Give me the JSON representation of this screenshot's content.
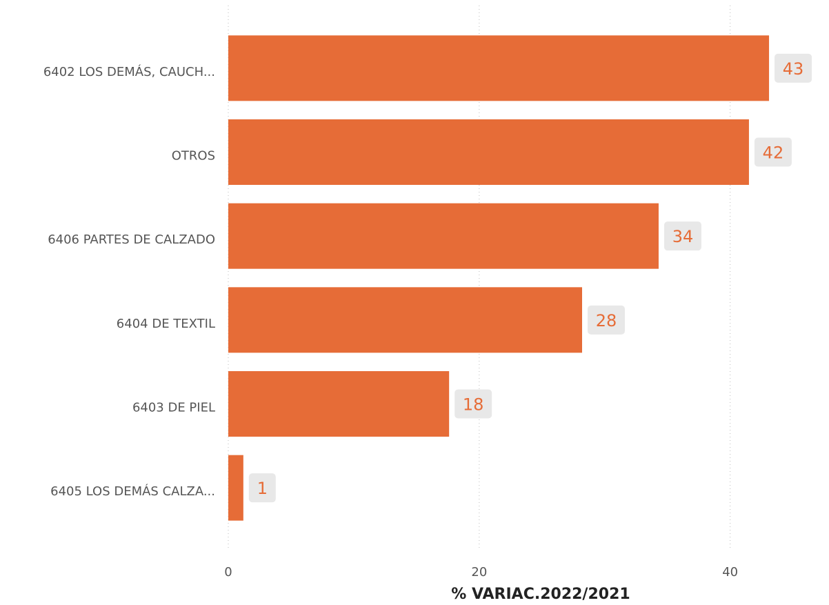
{
  "chart_data": {
    "type": "hbar",
    "categories": [
      "6402 LOS DEMÁS, CAUCH...",
      "OTROS",
      "6406 PARTES DE CALZADO",
      "6404 DE TEXTIL",
      "6403 DE PIEL",
      "6405 LOS DEMÁS CALZA..."
    ],
    "values": [
      43.1,
      41.5,
      34.3,
      28.2,
      17.6,
      1.2
    ],
    "value_labels": [
      "43",
      "42",
      "34",
      "28",
      "18",
      "1"
    ],
    "color": "#e66c37",
    "xlim": [
      0,
      47
    ],
    "xticks": [
      0,
      20,
      40
    ],
    "grid": true,
    "x_label": "% VARIAC.2022/2021"
  }
}
